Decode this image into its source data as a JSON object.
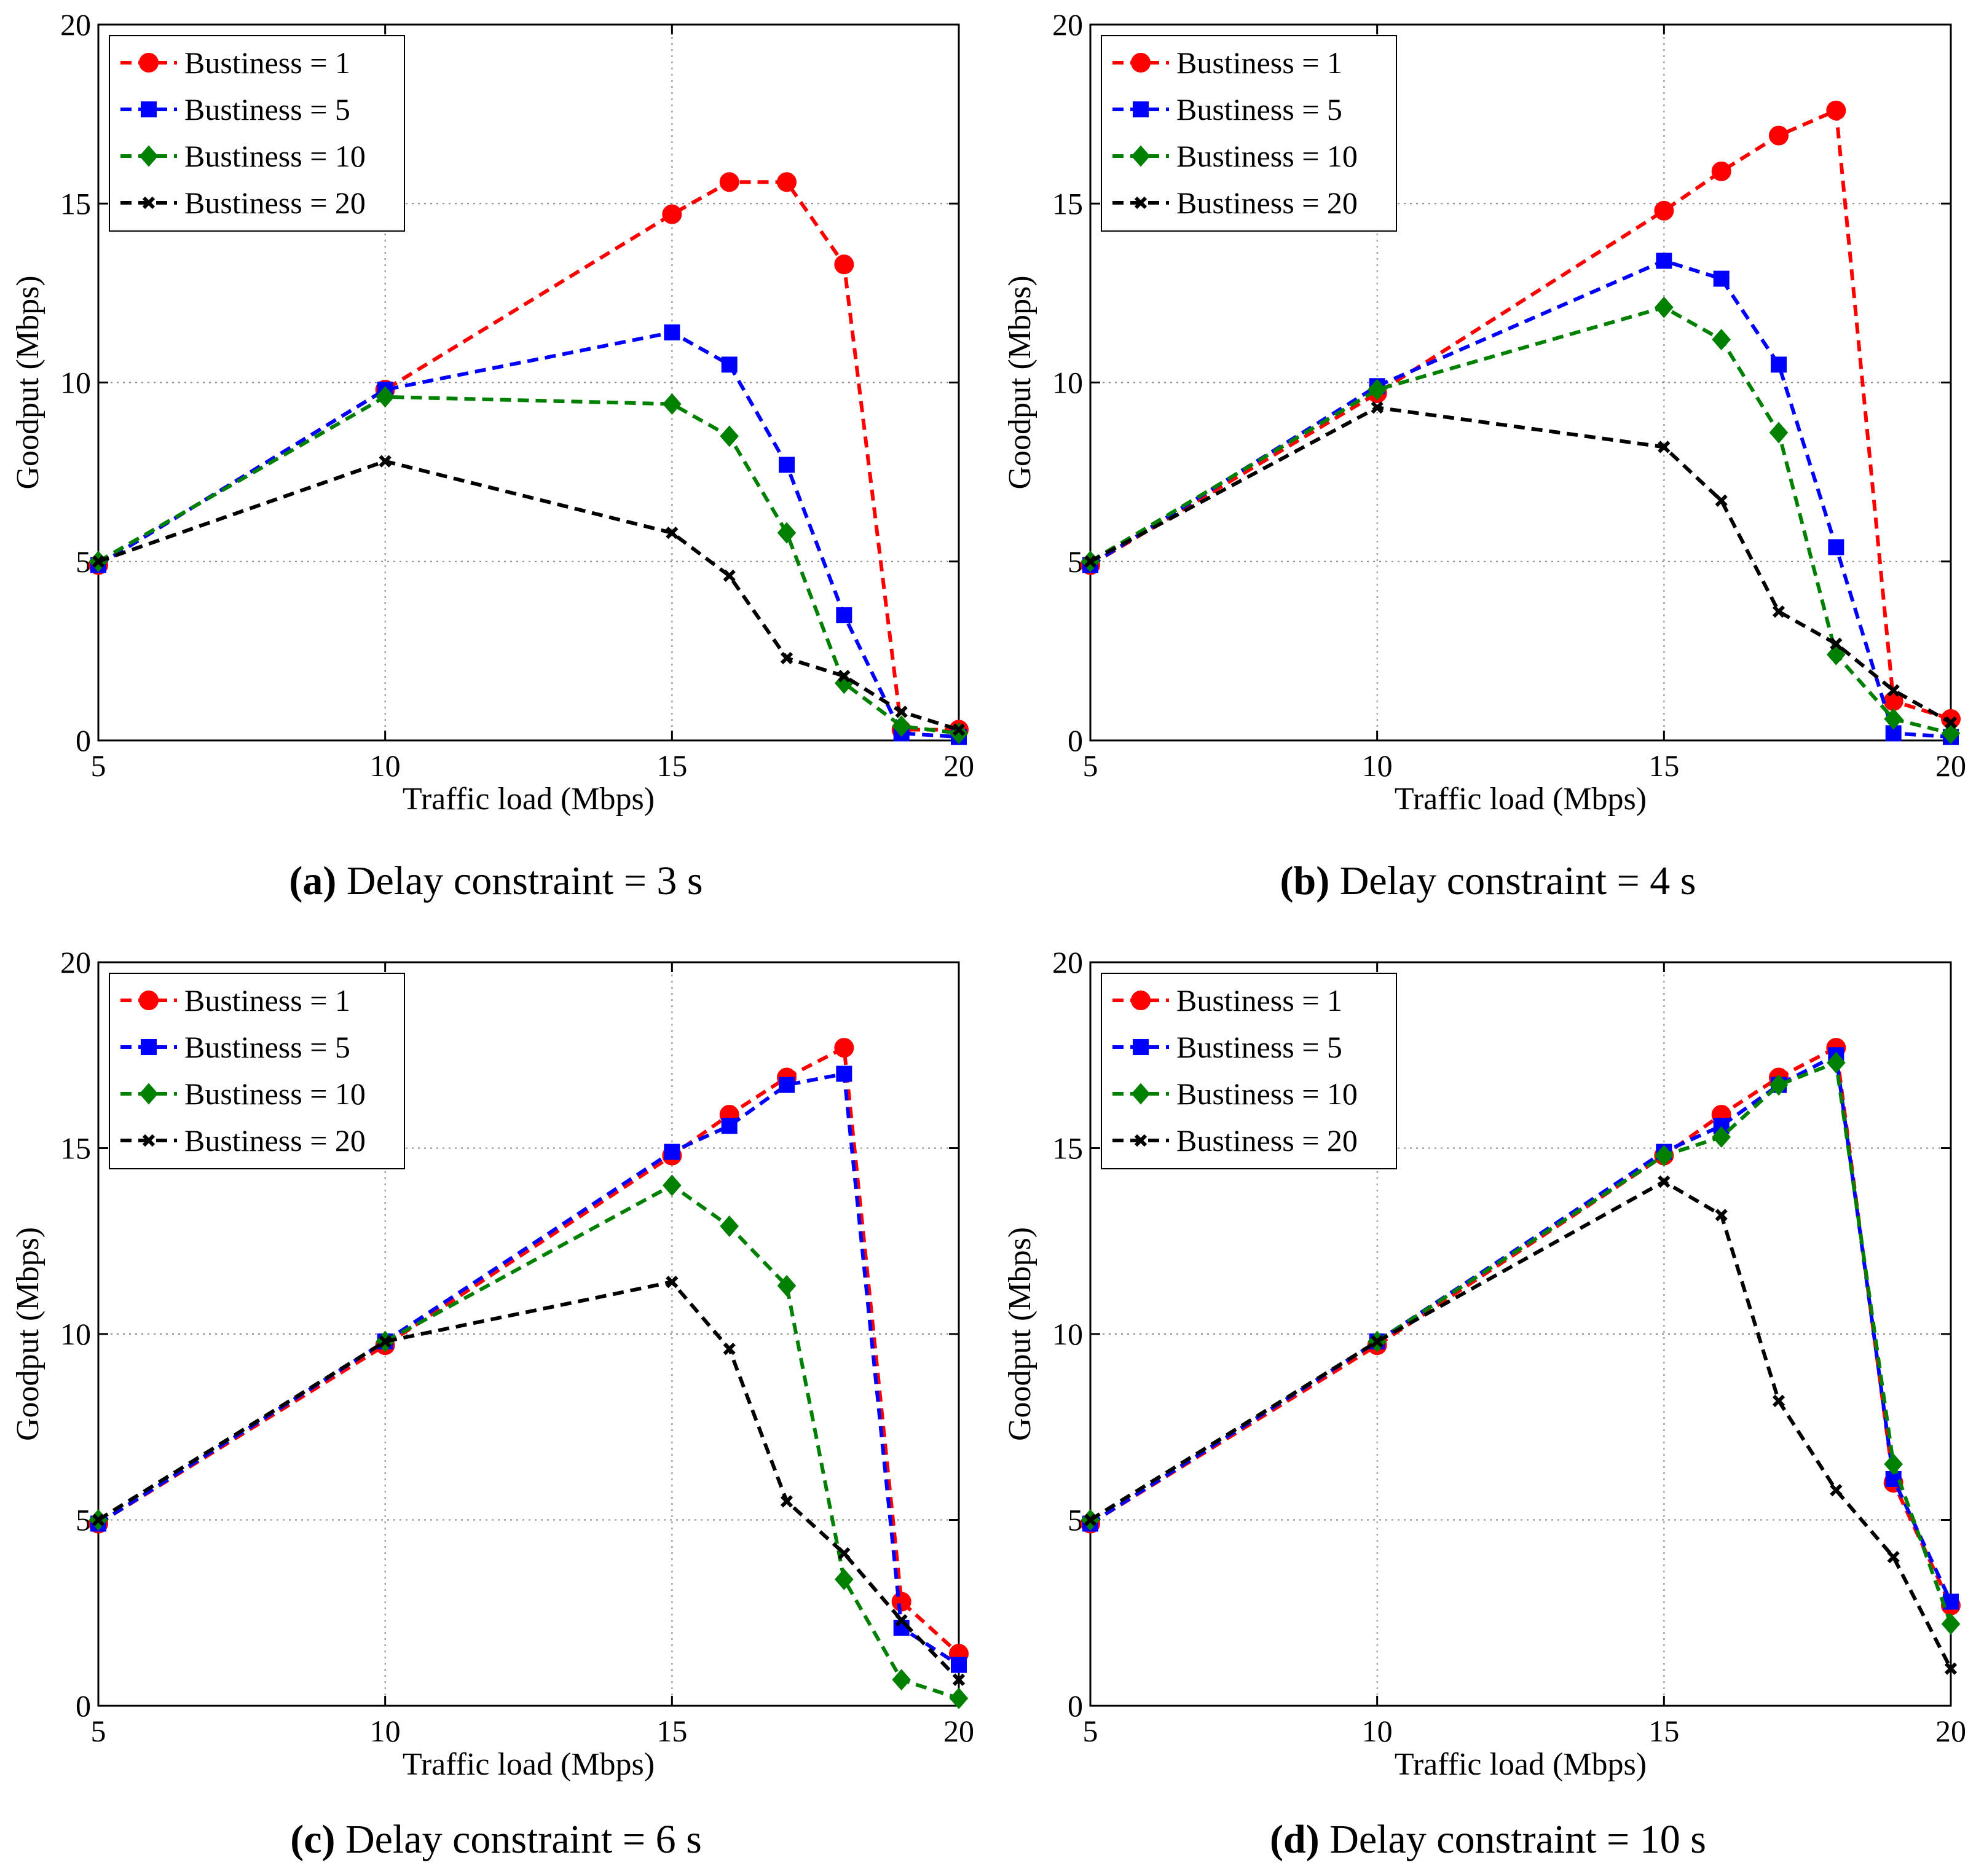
{
  "chart_data": [
    {
      "type": "line",
      "panel_label": "(a)",
      "caption_text": "Delay constraint = 3 s",
      "xlabel": "Traffic load (Mbps)",
      "ylabel": "Goodput (Mbps)",
      "xlim": [
        5,
        20
      ],
      "ylim": [
        0,
        20
      ],
      "xticks": [
        5,
        10,
        15,
        20
      ],
      "yticks": [
        0,
        5,
        10,
        15,
        20
      ],
      "grid": true,
      "legend_position": "top-left",
      "x": [
        5,
        10,
        15,
        16,
        17,
        18,
        19,
        20
      ],
      "series": [
        {
          "name": "Bustiness = 1",
          "color": "#ff0000",
          "marker": "circle",
          "values": [
            4.9,
            9.8,
            14.7,
            15.6,
            15.6,
            13.3,
            0.3,
            0.3
          ]
        },
        {
          "name": "Bustiness = 5",
          "color": "#0000ff",
          "marker": "square",
          "values": [
            4.9,
            9.8,
            11.4,
            10.5,
            7.7,
            3.5,
            0.2,
            0.1
          ]
        },
        {
          "name": "Bustiness = 10",
          "color": "#008000",
          "marker": "diamond",
          "values": [
            5.0,
            9.6,
            9.4,
            8.5,
            5.8,
            1.6,
            0.4,
            0.2
          ]
        },
        {
          "name": "Bustiness = 20",
          "color": "#000000",
          "marker": "x",
          "values": [
            5.0,
            7.8,
            5.8,
            4.6,
            2.3,
            1.8,
            0.8,
            0.3
          ]
        }
      ]
    },
    {
      "type": "line",
      "panel_label": "(b)",
      "caption_text": "Delay constraint = 4 s",
      "xlabel": "Traffic load (Mbps)",
      "ylabel": "Goodput (Mbps)",
      "xlim": [
        5,
        20
      ],
      "ylim": [
        0,
        20
      ],
      "xticks": [
        5,
        10,
        15,
        20
      ],
      "yticks": [
        0,
        5,
        10,
        15,
        20
      ],
      "grid": true,
      "legend_position": "top-left",
      "x": [
        5,
        10,
        15,
        16,
        17,
        18,
        19,
        20
      ],
      "series": [
        {
          "name": "Bustiness = 1",
          "color": "#ff0000",
          "marker": "circle",
          "values": [
            4.9,
            9.7,
            14.8,
            15.9,
            16.9,
            17.6,
            1.1,
            0.6
          ]
        },
        {
          "name": "Bustiness = 5",
          "color": "#0000ff",
          "marker": "square",
          "values": [
            4.9,
            9.9,
            13.4,
            12.9,
            10.5,
            5.4,
            0.2,
            0.1
          ]
        },
        {
          "name": "Bustiness = 10",
          "color": "#008000",
          "marker": "diamond",
          "values": [
            5.0,
            9.8,
            12.1,
            11.2,
            8.6,
            2.4,
            0.6,
            0.2
          ]
        },
        {
          "name": "Bustiness = 20",
          "color": "#000000",
          "marker": "x",
          "values": [
            5.0,
            9.3,
            8.2,
            6.7,
            3.6,
            2.7,
            1.4,
            0.5
          ]
        }
      ]
    },
    {
      "type": "line",
      "panel_label": "(c)",
      "caption_text": "Delay constraint = 6 s",
      "xlabel": "Traffic load (Mbps)",
      "ylabel": "Goodput (Mbps)",
      "xlim": [
        5,
        20
      ],
      "ylim": [
        0,
        20
      ],
      "xticks": [
        5,
        10,
        15,
        20
      ],
      "yticks": [
        0,
        5,
        10,
        15,
        20
      ],
      "grid": true,
      "legend_position": "top-left",
      "x": [
        5,
        10,
        15,
        16,
        17,
        18,
        19,
        20
      ],
      "series": [
        {
          "name": "Bustiness = 1",
          "color": "#ff0000",
          "marker": "circle",
          "values": [
            4.9,
            9.7,
            14.8,
            15.9,
            16.9,
            17.7,
            2.8,
            1.4
          ]
        },
        {
          "name": "Bustiness = 5",
          "color": "#0000ff",
          "marker": "square",
          "values": [
            4.9,
            9.8,
            14.9,
            15.6,
            16.7,
            17.0,
            2.1,
            1.1
          ]
        },
        {
          "name": "Bustiness = 10",
          "color": "#008000",
          "marker": "diamond",
          "values": [
            5.0,
            9.8,
            14.0,
            12.9,
            11.3,
            3.4,
            0.7,
            0.2
          ]
        },
        {
          "name": "Bustiness = 20",
          "color": "#000000",
          "marker": "x",
          "values": [
            5.0,
            9.8,
            11.4,
            9.6,
            5.5,
            4.1,
            2.3,
            0.7
          ]
        }
      ]
    },
    {
      "type": "line",
      "panel_label": "(d)",
      "caption_text": "Delay constraint = 10 s",
      "xlabel": "Traffic load (Mbps)",
      "ylabel": "Goodput (Mbps)",
      "xlim": [
        5,
        20
      ],
      "ylim": [
        0,
        20
      ],
      "xticks": [
        5,
        10,
        15,
        20
      ],
      "yticks": [
        0,
        5,
        10,
        15,
        20
      ],
      "grid": true,
      "legend_position": "top-left",
      "x": [
        5,
        10,
        15,
        16,
        17,
        18,
        19,
        20
      ],
      "series": [
        {
          "name": "Bustiness = 1",
          "color": "#ff0000",
          "marker": "circle",
          "values": [
            4.9,
            9.7,
            14.8,
            15.9,
            16.9,
            17.7,
            6.0,
            2.7
          ]
        },
        {
          "name": "Bustiness = 5",
          "color": "#0000ff",
          "marker": "square",
          "values": [
            4.9,
            9.8,
            14.9,
            15.6,
            16.7,
            17.5,
            6.1,
            2.8
          ]
        },
        {
          "name": "Bustiness = 10",
          "color": "#008000",
          "marker": "diamond",
          "values": [
            5.0,
            9.8,
            14.8,
            15.3,
            16.7,
            17.3,
            6.5,
            2.2
          ]
        },
        {
          "name": "Bustiness = 20",
          "color": "#000000",
          "marker": "x",
          "values": [
            5.0,
            9.8,
            14.1,
            13.2,
            8.2,
            5.8,
            4.0,
            1.0
          ]
        }
      ]
    }
  ]
}
